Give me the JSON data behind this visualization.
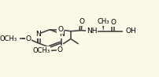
{
  "bg_color": "#fcf8e8",
  "bond_color": "#3a3a3a",
  "bond_width": 1.1,
  "font_size": 6.5,
  "xlim": [
    0.0,
    1.0
  ],
  "ylim": [
    0.0,
    1.0
  ]
}
